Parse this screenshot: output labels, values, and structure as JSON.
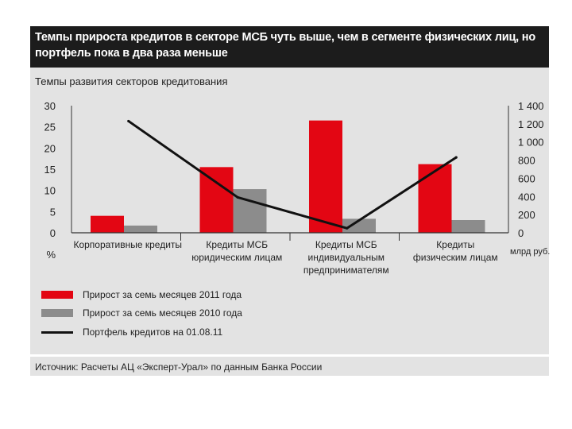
{
  "header": {
    "title": "Темпы прироста кредитов в секторе МСБ чуть выше, чем в сегменте физических лиц, но портфель пока в два раза меньше"
  },
  "chart_data": {
    "type": "bar",
    "title": "Темпы развития секторов кредитования",
    "categories": [
      [
        "Корпоративные кредиты"
      ],
      [
        "Кредиты МСБ",
        "юридическим лицам"
      ],
      [
        "Кредиты МСБ",
        "индивидуальным",
        "предпринимателям"
      ],
      [
        "Кредиты",
        "физическим лицам"
      ]
    ],
    "series": [
      {
        "name": "Прирост за семь месяцев 2011 года",
        "type": "bar",
        "axis": "left",
        "color": "#e30613",
        "values": [
          4,
          15.5,
          26.5,
          16.2
        ]
      },
      {
        "name": "Прирост за семь месяцев 2010 года",
        "type": "bar",
        "axis": "left",
        "color": "#8c8c8c",
        "values": [
          1.7,
          10.3,
          3.3,
          3
        ]
      },
      {
        "name": "Портфель кредитов на 01.08.11",
        "type": "line",
        "axis": "right",
        "color": "#111111",
        "values": [
          1230,
          390,
          50,
          830
        ]
      }
    ],
    "y_left": {
      "min": 0,
      "max": 30,
      "ticks": [
        "0",
        "5",
        "10",
        "15",
        "20",
        "25",
        "30"
      ],
      "unit": "%"
    },
    "y_right": {
      "min": 0,
      "max": 1400,
      "ticks": [
        "0",
        "200",
        "400",
        "600",
        "800",
        "1 000",
        "1 200",
        "1 400"
      ],
      "unit": "млрд руб."
    },
    "grid": false,
    "legend_position": "bottom"
  },
  "source": "Источник: Расчеты АЦ «Эксперт-Урал» по данным Банка России"
}
